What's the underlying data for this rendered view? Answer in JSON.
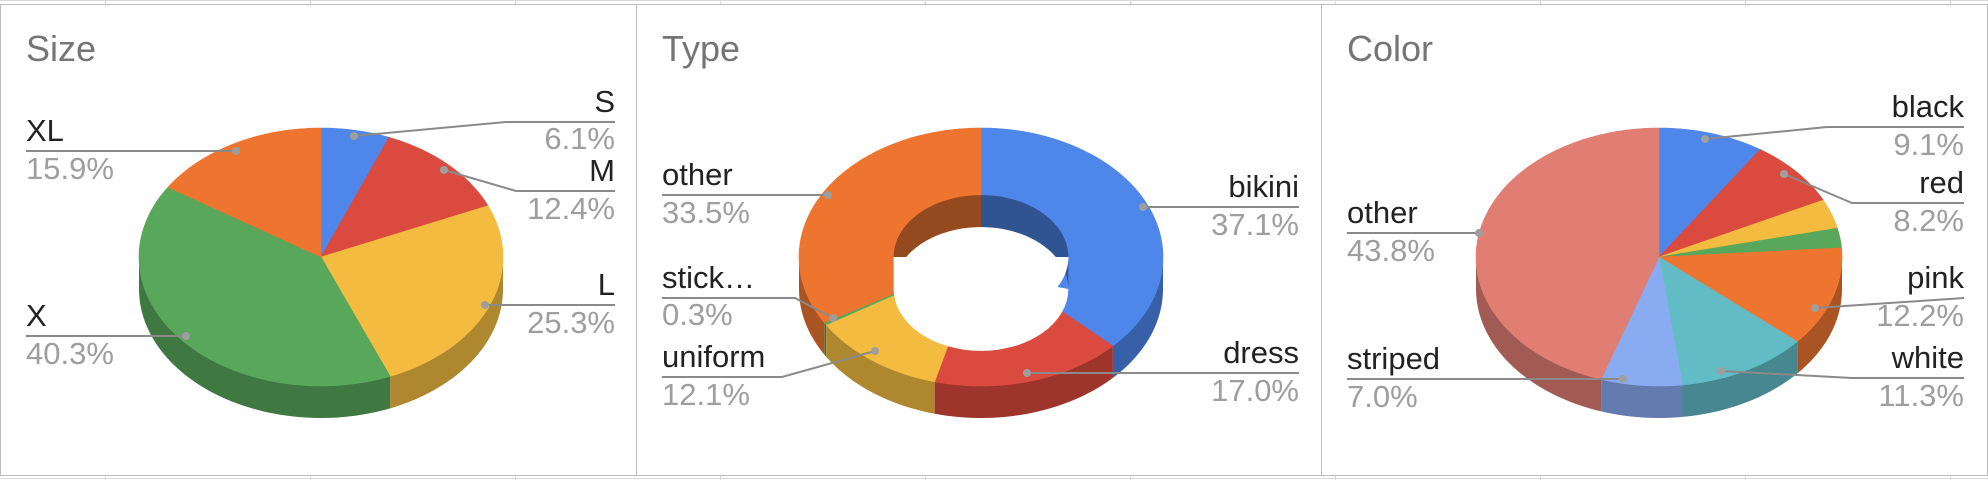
{
  "sheet": {
    "gridline_color": "#d7d7d7"
  },
  "chart_data": [
    {
      "type": "pie",
      "title": "Size",
      "style": "3d",
      "slices": [
        {
          "label": "S",
          "value": 6.1,
          "percent_label": "6.1%",
          "color": "#4e86ea"
        },
        {
          "label": "M",
          "value": 12.4,
          "percent_label": "12.4%",
          "color": "#db4a3e"
        },
        {
          "label": "L",
          "value": 25.3,
          "percent_label": "25.3%",
          "color": "#f3bb40"
        },
        {
          "label": "X",
          "value": 40.3,
          "percent_label": "40.3%",
          "color": "#58a75a"
        },
        {
          "label": "XL",
          "value": 15.9,
          "percent_label": "15.9%",
          "color": "#ee7530"
        }
      ]
    },
    {
      "type": "pie",
      "title": "Type",
      "style": "3d-donut",
      "slices": [
        {
          "label": "bikini",
          "value": 37.1,
          "percent_label": "37.1%",
          "color": "#4e86ea"
        },
        {
          "label": "dress",
          "value": 17.0,
          "percent_label": "17.0%",
          "color": "#db4a3e"
        },
        {
          "label": "uniform",
          "value": 12.1,
          "percent_label": "12.1%",
          "color": "#f3bb40"
        },
        {
          "label": "stick…",
          "value": 0.3,
          "percent_label": "0.3%",
          "color": "#58a75a"
        },
        {
          "label": "other",
          "value": 33.5,
          "percent_label": "33.5%",
          "color": "#ee7530"
        }
      ]
    },
    {
      "type": "pie",
      "title": "Color",
      "style": "3d",
      "slices": [
        {
          "label": "black",
          "value": 9.1,
          "percent_label": "9.1%",
          "color": "#4e86ea"
        },
        {
          "label": "red",
          "value": 8.2,
          "percent_label": "8.2%",
          "color": "#db4a3e"
        },
        {
          "label": "",
          "value": 3.6,
          "percent_label": "",
          "color": "#f3bb40"
        },
        {
          "label": "",
          "value": 2.4,
          "percent_label": "",
          "color": "#58a75a"
        },
        {
          "label": "pink",
          "value": 12.2,
          "percent_label": "12.2%",
          "color": "#ee7530"
        },
        {
          "label": "white",
          "value": 11.3,
          "percent_label": "11.3%",
          "color": "#62bcc6"
        },
        {
          "label": "striped",
          "value": 7.0,
          "percent_label": "7.0%",
          "color": "#89abf1"
        },
        {
          "label": "other",
          "value": 43.8,
          "percent_label": "43.8%",
          "color": "#e17e74"
        }
      ]
    }
  ]
}
